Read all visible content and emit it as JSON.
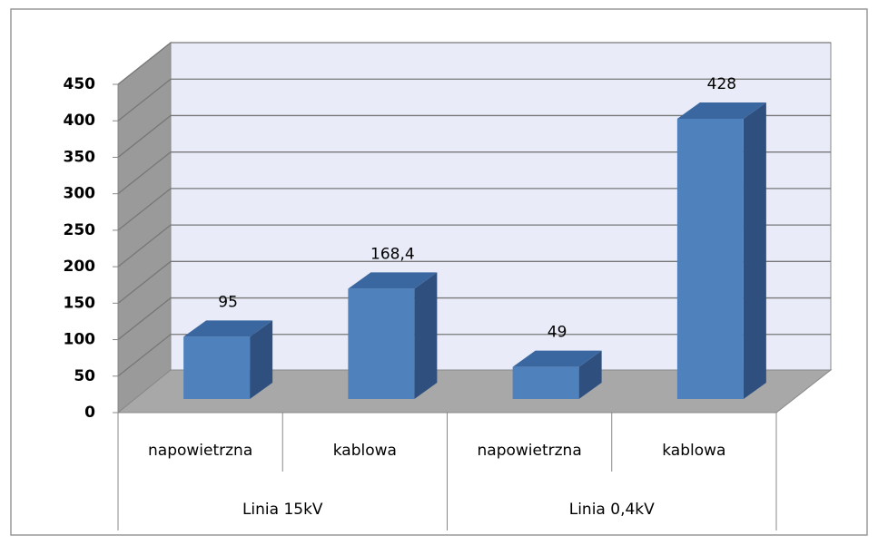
{
  "chart_data": {
    "type": "bar3d",
    "categories": [
      "napowietrzna",
      "kablowa",
      "napowietrzna",
      "kablowa"
    ],
    "groups": [
      "Linia 15kV",
      "Linia 0,4kV"
    ],
    "values": [
      95,
      168.4,
      49,
      428
    ],
    "value_labels": [
      "95",
      "168,4",
      "49",
      "428"
    ],
    "color": "#4f81bd",
    "ylim": [
      0,
      450
    ],
    "yticks": [
      0,
      50,
      100,
      150,
      200,
      250,
      300,
      350,
      400,
      450
    ],
    "grid": true
  }
}
